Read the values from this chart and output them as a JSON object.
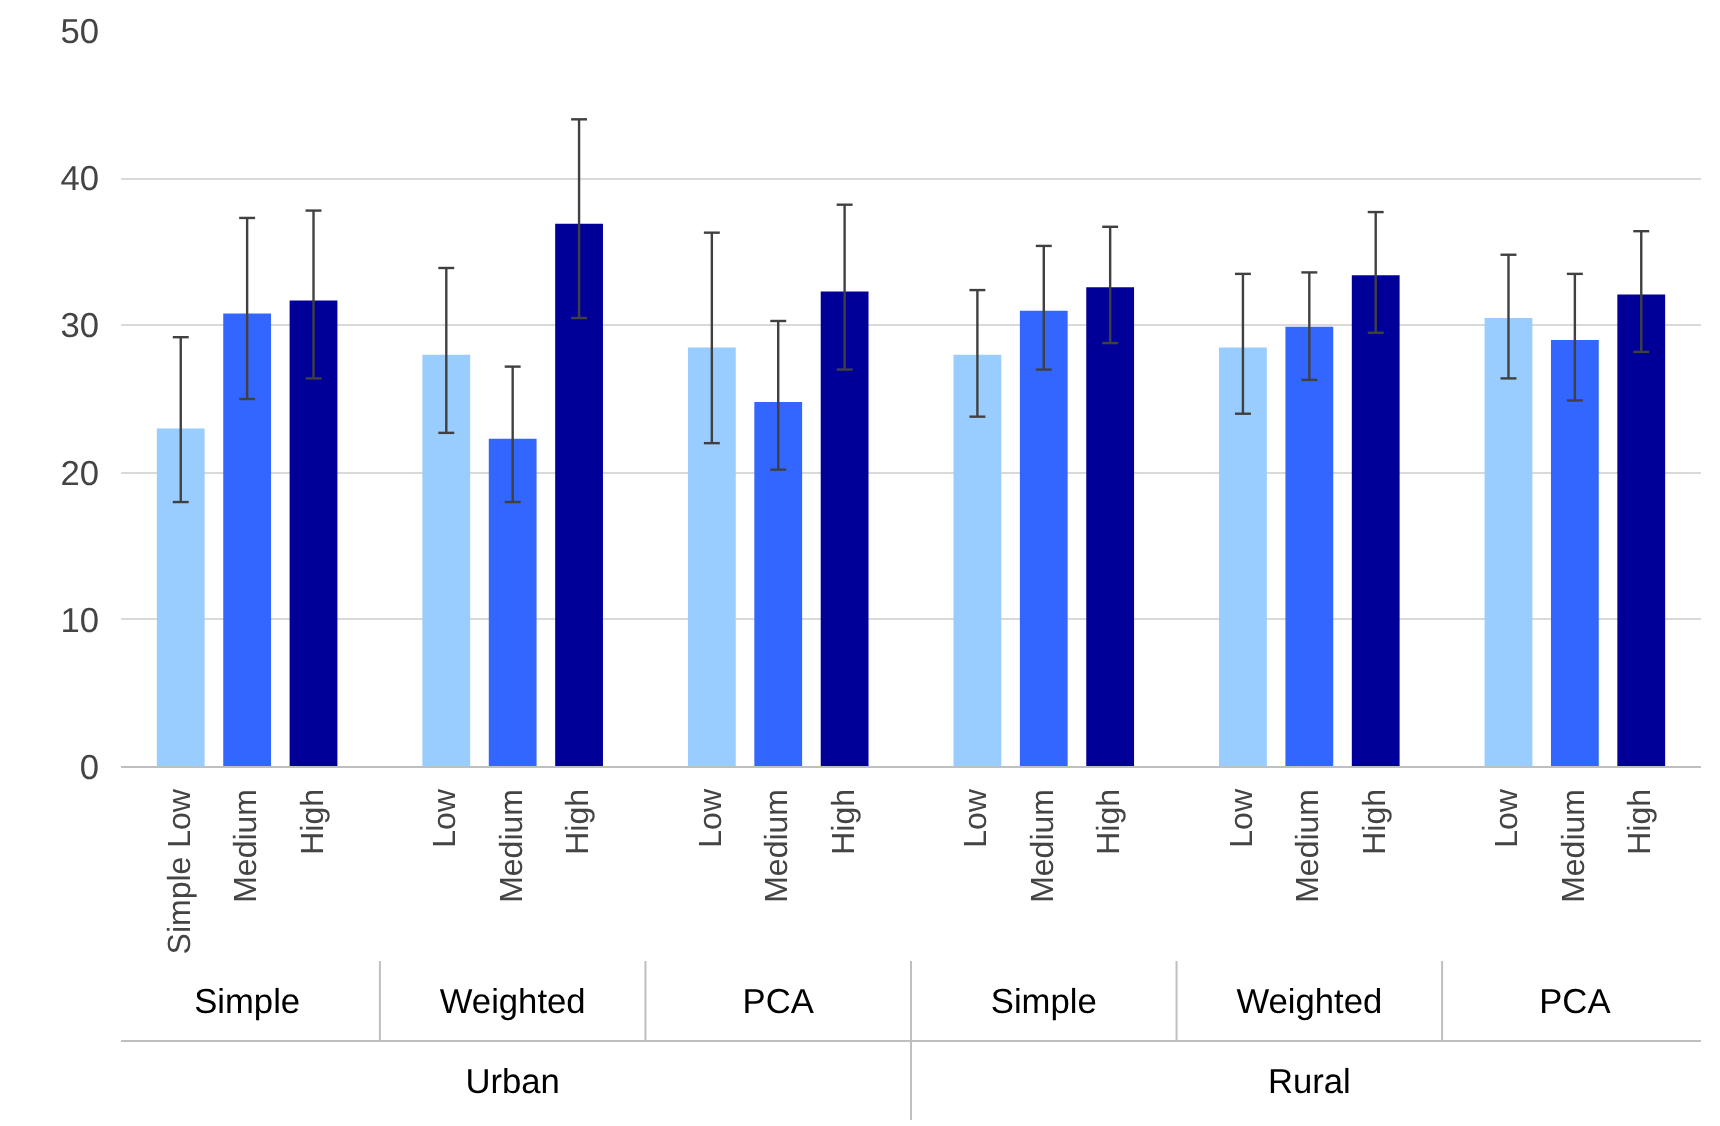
{
  "chart_data": {
    "type": "bar",
    "categories": [
      "Simple Low",
      "Medium",
      "High",
      "Low",
      "Medium",
      "High",
      "Low",
      "Medium",
      "High",
      "Low",
      "Medium",
      "High",
      "Low",
      "Medium",
      "High",
      "Low",
      "Medium",
      "High"
    ],
    "values": [
      23.0,
      30.8,
      31.7,
      28.0,
      22.3,
      36.9,
      28.5,
      24.8,
      32.3,
      28.0,
      31.0,
      32.6,
      28.5,
      29.9,
      33.4,
      30.5,
      29.0,
      32.1
    ],
    "colors": [
      "#99ccff",
      "#3366ff",
      "#000099",
      "#99ccff",
      "#3366ff",
      "#000099",
      "#99ccff",
      "#3366ff",
      "#000099",
      "#99ccff",
      "#3366ff",
      "#000099",
      "#99ccff",
      "#3366ff",
      "#000099",
      "#99ccff",
      "#3366ff",
      "#000099"
    ],
    "errors": [
      [
        18.0,
        29.2
      ],
      [
        25.0,
        37.3
      ],
      [
        26.4,
        37.8
      ],
      [
        22.7,
        33.9
      ],
      [
        18.0,
        27.2
      ],
      [
        30.5,
        44.0
      ],
      [
        22.0,
        36.3
      ],
      [
        20.2,
        30.3
      ],
      [
        27.0,
        38.2
      ],
      [
        23.8,
        32.4
      ],
      [
        27.0,
        35.4
      ],
      [
        28.8,
        36.7
      ],
      [
        24.0,
        33.5
      ],
      [
        26.3,
        33.6
      ],
      [
        29.5,
        37.7
      ],
      [
        26.4,
        34.8
      ],
      [
        24.9,
        33.5
      ],
      [
        28.2,
        36.4
      ]
    ],
    "annotations": [
      "Simple",
      "Weighted",
      "PCA",
      "Simple",
      "Weighted",
      "PCA",
      "Urban",
      "Rural"
    ],
    "ylim": [
      0,
      50
    ],
    "yticks": [
      0,
      10,
      20,
      30,
      40,
      50
    ],
    "grid": "y"
  }
}
